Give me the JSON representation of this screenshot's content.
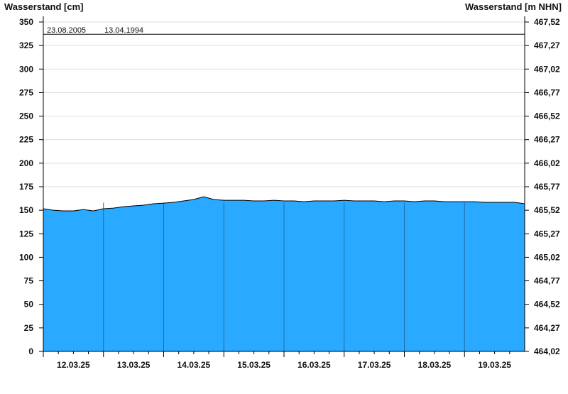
{
  "chart_data": {
    "type": "area",
    "ylabel_left": "Wasserstand [cm]",
    "ylabel_right": "Wasserstand [m NHN]",
    "ylim": [
      0,
      350
    ],
    "yticks_left": [
      "0",
      "25",
      "50",
      "75",
      "100",
      "125",
      "150",
      "175",
      "200",
      "225",
      "250",
      "275",
      "300",
      "325",
      "350"
    ],
    "yticks_right": [
      "464,02",
      "464,27",
      "464,52",
      "464,77",
      "465,02",
      "465,27",
      "465,52",
      "465,77",
      "466,02",
      "466,27",
      "466,52",
      "466,77",
      "467,02",
      "467,27",
      "467,52"
    ],
    "xlim": [
      "12.03.25 00:00",
      "20.03.25 00:00"
    ],
    "xticks": [
      "12.03.25",
      "13.03.25",
      "14.03.25",
      "15.03.25",
      "16.03.25",
      "17.03.25",
      "18.03.25",
      "19.03.25"
    ],
    "grid": true,
    "reference_line": {
      "value": 337,
      "labels": [
        "23.08.2005",
        "13.04.1994"
      ]
    },
    "colors": {
      "fill": "#29A9FF",
      "outline": "#000000",
      "day_lines": "#1F6FA8",
      "grid": "#DDDDDD"
    },
    "series": [
      {
        "x": [
          "12.03.25 00:00",
          "12.03.25 04:00",
          "12.03.25 08:00",
          "12.03.25 12:00",
          "12.03.25 16:00",
          "12.03.25 20:00",
          "13.03.25 00:00",
          "13.03.25 04:00",
          "13.03.25 08:00",
          "13.03.25 12:00",
          "13.03.25 16:00",
          "13.03.25 20:00",
          "14.03.25 00:00",
          "14.03.25 04:00",
          "14.03.25 08:00",
          "14.03.25 12:00",
          "14.03.25 16:00",
          "14.03.25 20:00",
          "15.03.25 00:00",
          "15.03.25 04:00",
          "15.03.25 08:00",
          "15.03.25 12:00",
          "15.03.25 16:00",
          "15.03.25 20:00",
          "16.03.25 00:00",
          "16.03.25 04:00",
          "16.03.25 08:00",
          "16.03.25 12:00",
          "16.03.25 16:00",
          "16.03.25 20:00",
          "17.03.25 00:00",
          "17.03.25 04:00",
          "17.03.25 08:00",
          "17.03.25 12:00",
          "17.03.25 16:00",
          "17.03.25 20:00",
          "18.03.25 00:00",
          "18.03.25 04:00",
          "18.03.25 08:00",
          "18.03.25 12:00",
          "18.03.25 16:00",
          "18.03.25 20:00",
          "19.03.25 00:00",
          "19.03.25 04:00",
          "19.03.25 08:00",
          "19.03.25 12:00",
          "19.03.25 16:00",
          "19.03.25 20:00",
          "20.03.25 00:00"
        ],
        "values": [
          151.6,
          150.0,
          149.3,
          149.3,
          150.8,
          149.3,
          151.6,
          152.3,
          153.8,
          154.6,
          155.4,
          156.9,
          157.6,
          158.4,
          159.9,
          161.4,
          164.4,
          161.4,
          160.6,
          160.6,
          160.6,
          159.9,
          159.9,
          160.6,
          159.9,
          159.9,
          159.1,
          159.9,
          159.9,
          159.9,
          160.6,
          159.9,
          159.9,
          159.9,
          159.1,
          159.9,
          159.9,
          159.1,
          159.9,
          159.9,
          159.1,
          159.1,
          159.1,
          159.1,
          158.4,
          158.4,
          158.4,
          158.4,
          156.9
        ]
      }
    ]
  }
}
